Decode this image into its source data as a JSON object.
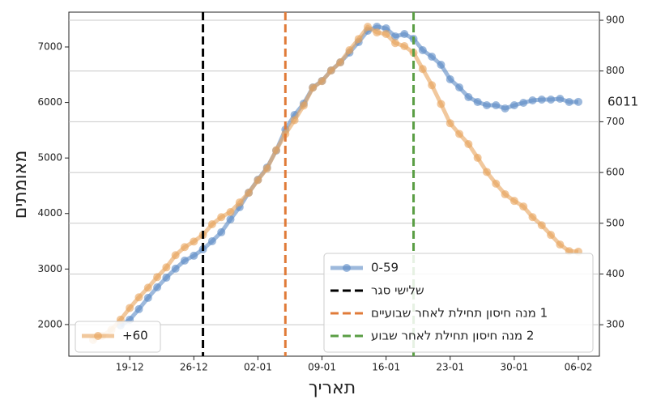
{
  "chart_data": {
    "type": "line",
    "x_label": "תאריך",
    "y_label": "מאומתים",
    "categories": [
      null,
      null,
      null,
      null,
      "19-12",
      null,
      null,
      null,
      null,
      null,
      null,
      "26-12",
      null,
      null,
      null,
      null,
      null,
      null,
      "02-01",
      null,
      null,
      null,
      null,
      null,
      null,
      "09-01",
      null,
      null,
      null,
      null,
      null,
      null,
      "16-01",
      null,
      null,
      null,
      null,
      null,
      null,
      "23-01",
      null,
      null,
      null,
      null,
      null,
      null,
      "30-01",
      null,
      null,
      null,
      null,
      null,
      null,
      "06-02"
    ],
    "ylim": [
      1430,
      7627
    ],
    "yticks": [
      2000,
      3000,
      4000,
      5000,
      6000,
      7000
    ],
    "y2lim": [
      238,
      916
    ],
    "y2ticks": [
      300,
      400,
      500,
      600,
      700,
      800,
      900
    ],
    "grid": "y2",
    "series": [
      {
        "name": "0-59",
        "color": "#5b8ac4",
        "legend": "lower right",
        "end_label": true,
        "values": [
          null,
          null,
          null,
          1985,
          2087,
          2277,
          2481,
          2671,
          2845,
          3006,
          3152,
          3239,
          3356,
          3501,
          3662,
          3895,
          4114,
          4376,
          4609,
          4828,
          5134,
          5513,
          5776,
          5980,
          6271,
          6388,
          6577,
          6723,
          6898,
          7087,
          7292,
          7365,
          7335,
          7190,
          7233,
          7146,
          6942,
          6825,
          6679,
          6417,
          6271,
          6096,
          6009,
          5950,
          5950,
          5892,
          5950,
          5994,
          6038,
          6052,
          6052,
          6067,
          6009,
          6011
        ]
      },
      {
        "name": "60+",
        "color": "#e8a35c",
        "axis": "y2",
        "legend": "lower left",
        "values": [
          270,
          278,
          290,
          310,
          333,
          354,
          373,
          394,
          413,
          437,
          453,
          464,
          477,
          498,
          512,
          522,
          541,
          560,
          585,
          608,
          644,
          676,
          703,
          732,
          767,
          780,
          801,
          817,
          841,
          863,
          887,
          876,
          873,
          855,
          849,
          836,
          804,
          772,
          735,
          697,
          676,
          656,
          629,
          601,
          578,
          557,
          544,
          533,
          512,
          496,
          477,
          458,
          445,
          444
        ]
      }
    ],
    "vlines": [
      {
        "x": 12,
        "color": "#000000",
        "label": "שלישי סגר"
      },
      {
        "x": 21,
        "color": "#e07b39",
        "label": "1 מנה חיסון תחילת לאחר שבועיים"
      },
      {
        "x": 35,
        "color": "#5a9e44",
        "label": "2 מנה חיסון תחילת לאחר שבוע"
      }
    ]
  }
}
